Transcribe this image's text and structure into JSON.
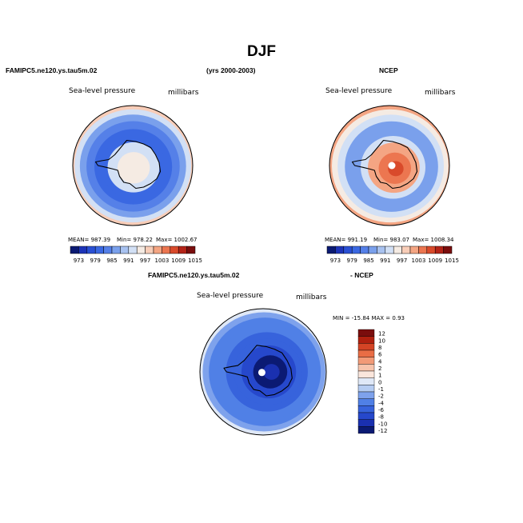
{
  "figure": {
    "title": "DJF",
    "model_name": "FAMIPC5.ne120.ys.tau5m.02",
    "years": "(yrs 2000-2003)",
    "obs_name": "NCEP",
    "diff_model_name": "FAMIPC5.ne120.ys.tau5m.02",
    "diff_suffix": "- NCEP"
  },
  "chart_data": [
    {
      "type": "heatmap",
      "projection": "south-polar-stereographic",
      "title": "Sea-level pressure",
      "units": "millibars",
      "stats": {
        "mean_label": "MEAN= 987.39",
        "min_label": "Min= 978.22",
        "max_label": "Max= 1002.67"
      },
      "contour_levels": [
        973,
        976,
        979,
        982,
        985,
        988,
        991,
        994,
        997,
        1000,
        1003,
        1006,
        1009,
        1012,
        1015
      ],
      "colorbar_tick_labels": [
        "973",
        "979",
        "985",
        "991",
        "997",
        "1003",
        "1009",
        "1015"
      ],
      "field_rings": [
        {
          "r": 1.0,
          "value": 1003
        },
        {
          "r": 0.95,
          "value": 998
        },
        {
          "r": 0.9,
          "value": 993
        },
        {
          "r": 0.82,
          "value": 987
        },
        {
          "r": 0.72,
          "value": 982
        },
        {
          "r": 0.6,
          "value": 979
        },
        {
          "r": 0.5,
          "value": 981
        },
        {
          "r": 0.4,
          "value": 993
        },
        {
          "r": 0.25,
          "value": 995
        },
        {
          "r": 0.12,
          "value": 995
        }
      ]
    },
    {
      "type": "heatmap",
      "projection": "south-polar-stereographic",
      "title": "Sea-level pressure",
      "units": "millibars",
      "stats": {
        "mean_label": "MEAN= 991.19",
        "min_label": "Min= 983.07",
        "max_label": "Max= 1008.34"
      },
      "contour_levels": [
        973,
        976,
        979,
        982,
        985,
        988,
        991,
        994,
        997,
        1000,
        1003,
        1006,
        1009,
        1012,
        1015
      ],
      "colorbar_tick_labels": [
        "973",
        "979",
        "985",
        "991",
        "997",
        "1003",
        "1009",
        "1015"
      ],
      "field_rings": [
        {
          "r": 1.0,
          "value": 1008
        },
        {
          "r": 0.95,
          "value": 1002
        },
        {
          "r": 0.9,
          "value": 996
        },
        {
          "r": 0.82,
          "value": 991
        },
        {
          "r": 0.72,
          "value": 986
        },
        {
          "r": 0.6,
          "value": 986
        },
        {
          "r": 0.5,
          "value": 993
        },
        {
          "r": 0.4,
          "value": 1000
        },
        {
          "r": 0.25,
          "value": 1004
        },
        {
          "r": 0.12,
          "value": 1006
        }
      ]
    },
    {
      "type": "heatmap",
      "projection": "south-polar-stereographic",
      "title": "Sea-level pressure",
      "units": "millibars",
      "stats": {
        "range_label": "MIN = -15.84 MAX =   0.93"
      },
      "contour_levels": [
        -12,
        -10,
        -8,
        -6,
        -4,
        -2,
        -1,
        0,
        1,
        2,
        4,
        6,
        8,
        10,
        12
      ],
      "colorbar_tick_labels": [
        "12",
        "10",
        "8",
        "6",
        "4",
        "2",
        "1",
        "0",
        "-1",
        "-2",
        "-4",
        "-6",
        "-8",
        "-10",
        "-12"
      ],
      "field_rings": [
        {
          "r": 1.0,
          "value": 0.5
        },
        {
          "r": 0.95,
          "value": -0.5
        },
        {
          "r": 0.9,
          "value": -3
        },
        {
          "r": 0.82,
          "value": -4.5
        },
        {
          "r": 0.72,
          "value": -5
        },
        {
          "r": 0.6,
          "value": -7
        },
        {
          "r": 0.5,
          "value": -8
        },
        {
          "r": 0.4,
          "value": -10
        },
        {
          "r": 0.25,
          "value": -13
        },
        {
          "r": 0.12,
          "value": -11
        }
      ]
    }
  ],
  "palette": {
    "sequential": [
      "#0b1a73",
      "#1d34b8",
      "#2a50d4",
      "#3a68e2",
      "#5580e8",
      "#7aa0ec",
      "#a8c2f0",
      "#d2e0f5",
      "#f5ebe3",
      "#f8cdb8",
      "#f4a583",
      "#ec7650",
      "#d94a2b",
      "#b42418",
      "#7a0d0d"
    ],
    "difference": [
      "#0b1a73",
      "#1a30b0",
      "#2648cc",
      "#3763dc",
      "#5080e6",
      "#7ea2ec",
      "#b5ccf2",
      "#dfe8f7",
      "#fbe6dc",
      "#f7c4ac",
      "#f29a77",
      "#e96d45",
      "#d44425",
      "#b0200f",
      "#7a0d0d"
    ],
    "land_fill": "#ffffff",
    "coastline": "#000000"
  }
}
